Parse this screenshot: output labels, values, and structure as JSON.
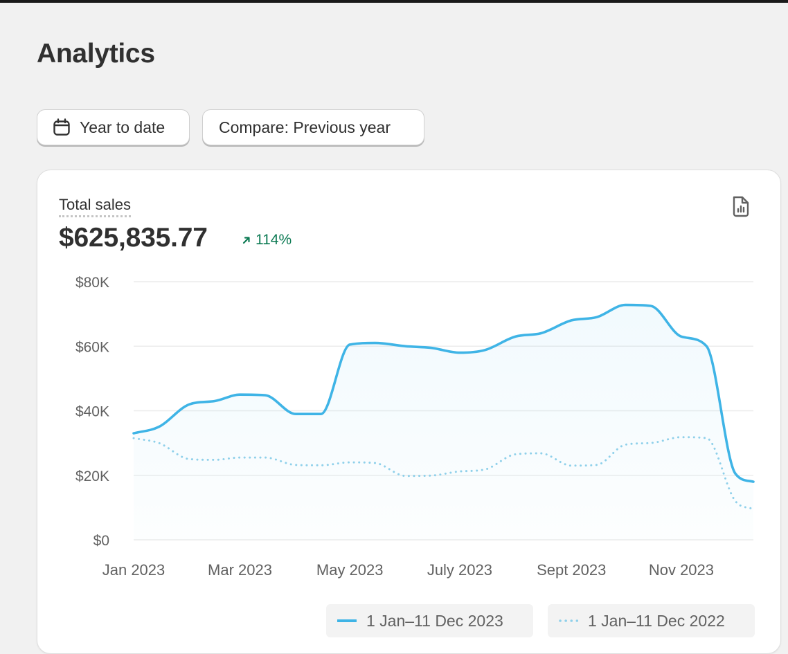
{
  "page": {
    "title": "Analytics"
  },
  "filters": {
    "date_range_label": "Year to date",
    "compare_label": "Compare: Previous year"
  },
  "metric": {
    "label": "Total sales",
    "value": "$625,835.77",
    "change": "114%",
    "change_direction": "up",
    "change_color": "#0c7a53"
  },
  "icons": {
    "date_button": "calendar-icon",
    "change": "arrow-up-right-icon",
    "export": "report-export-icon"
  },
  "colors": {
    "current_series": "#3fb4e6",
    "previous_series": "#8fd0ea",
    "grid": "#ececec",
    "axis_text": "#616161"
  },
  "chart_data": {
    "type": "line",
    "x_tick_labels": [
      "Jan 2023",
      "Mar 2023",
      "May 2023",
      "July 2023",
      "Sept 2023",
      "Nov 2023"
    ],
    "y_tick_labels": [
      "$0",
      "$20K",
      "$40K",
      "$60K",
      "$80K"
    ],
    "ylim": [
      0,
      80000
    ],
    "y_ticks": [
      0,
      20000,
      40000,
      60000,
      80000
    ],
    "grid": true,
    "legend_position": "bottom",
    "series": [
      {
        "name": "1 Jan–11 Dec 2023",
        "style": "solid",
        "area_fill": true,
        "points": [
          [
            "2023-01-01",
            33000
          ],
          [
            "2023-01-15",
            35000
          ],
          [
            "2023-02-01",
            42000
          ],
          [
            "2023-02-15",
            43000
          ],
          [
            "2023-03-01",
            45000
          ],
          [
            "2023-03-15",
            44800
          ],
          [
            "2023-04-01",
            39000
          ],
          [
            "2023-04-15",
            39000
          ],
          [
            "2023-05-01",
            60500
          ],
          [
            "2023-05-15",
            61000
          ],
          [
            "2023-06-01",
            60000
          ],
          [
            "2023-06-15",
            59500
          ],
          [
            "2023-07-01",
            58000
          ],
          [
            "2023-07-15",
            58800
          ],
          [
            "2023-08-01",
            63000
          ],
          [
            "2023-08-15",
            64000
          ],
          [
            "2023-09-01",
            68000
          ],
          [
            "2023-09-15",
            69000
          ],
          [
            "2023-10-01",
            72800
          ],
          [
            "2023-10-15",
            72500
          ],
          [
            "2023-11-01",
            63000
          ],
          [
            "2023-11-15",
            60000
          ],
          [
            "2023-12-01",
            20500
          ],
          [
            "2023-12-11",
            18000
          ]
        ]
      },
      {
        "name": "1 Jan–11 Dec 2022",
        "style": "dotted",
        "area_fill": false,
        "points": [
          [
            "2023-01-01",
            31500
          ],
          [
            "2023-01-15",
            30000
          ],
          [
            "2023-02-01",
            25000
          ],
          [
            "2023-02-15",
            24800
          ],
          [
            "2023-03-01",
            25500
          ],
          [
            "2023-03-15",
            25500
          ],
          [
            "2023-04-01",
            23200
          ],
          [
            "2023-04-15",
            23100
          ],
          [
            "2023-05-01",
            24000
          ],
          [
            "2023-05-15",
            23800
          ],
          [
            "2023-06-01",
            19800
          ],
          [
            "2023-06-15",
            19900
          ],
          [
            "2023-07-01",
            21200
          ],
          [
            "2023-07-15",
            21800
          ],
          [
            "2023-08-01",
            26500
          ],
          [
            "2023-08-15",
            26800
          ],
          [
            "2023-09-01",
            23000
          ],
          [
            "2023-09-15",
            23200
          ],
          [
            "2023-10-01",
            29500
          ],
          [
            "2023-10-15",
            30000
          ],
          [
            "2023-11-01",
            31800
          ],
          [
            "2023-11-15",
            31500
          ],
          [
            "2023-12-01",
            12000
          ],
          [
            "2023-12-11",
            9500
          ]
        ]
      }
    ]
  }
}
